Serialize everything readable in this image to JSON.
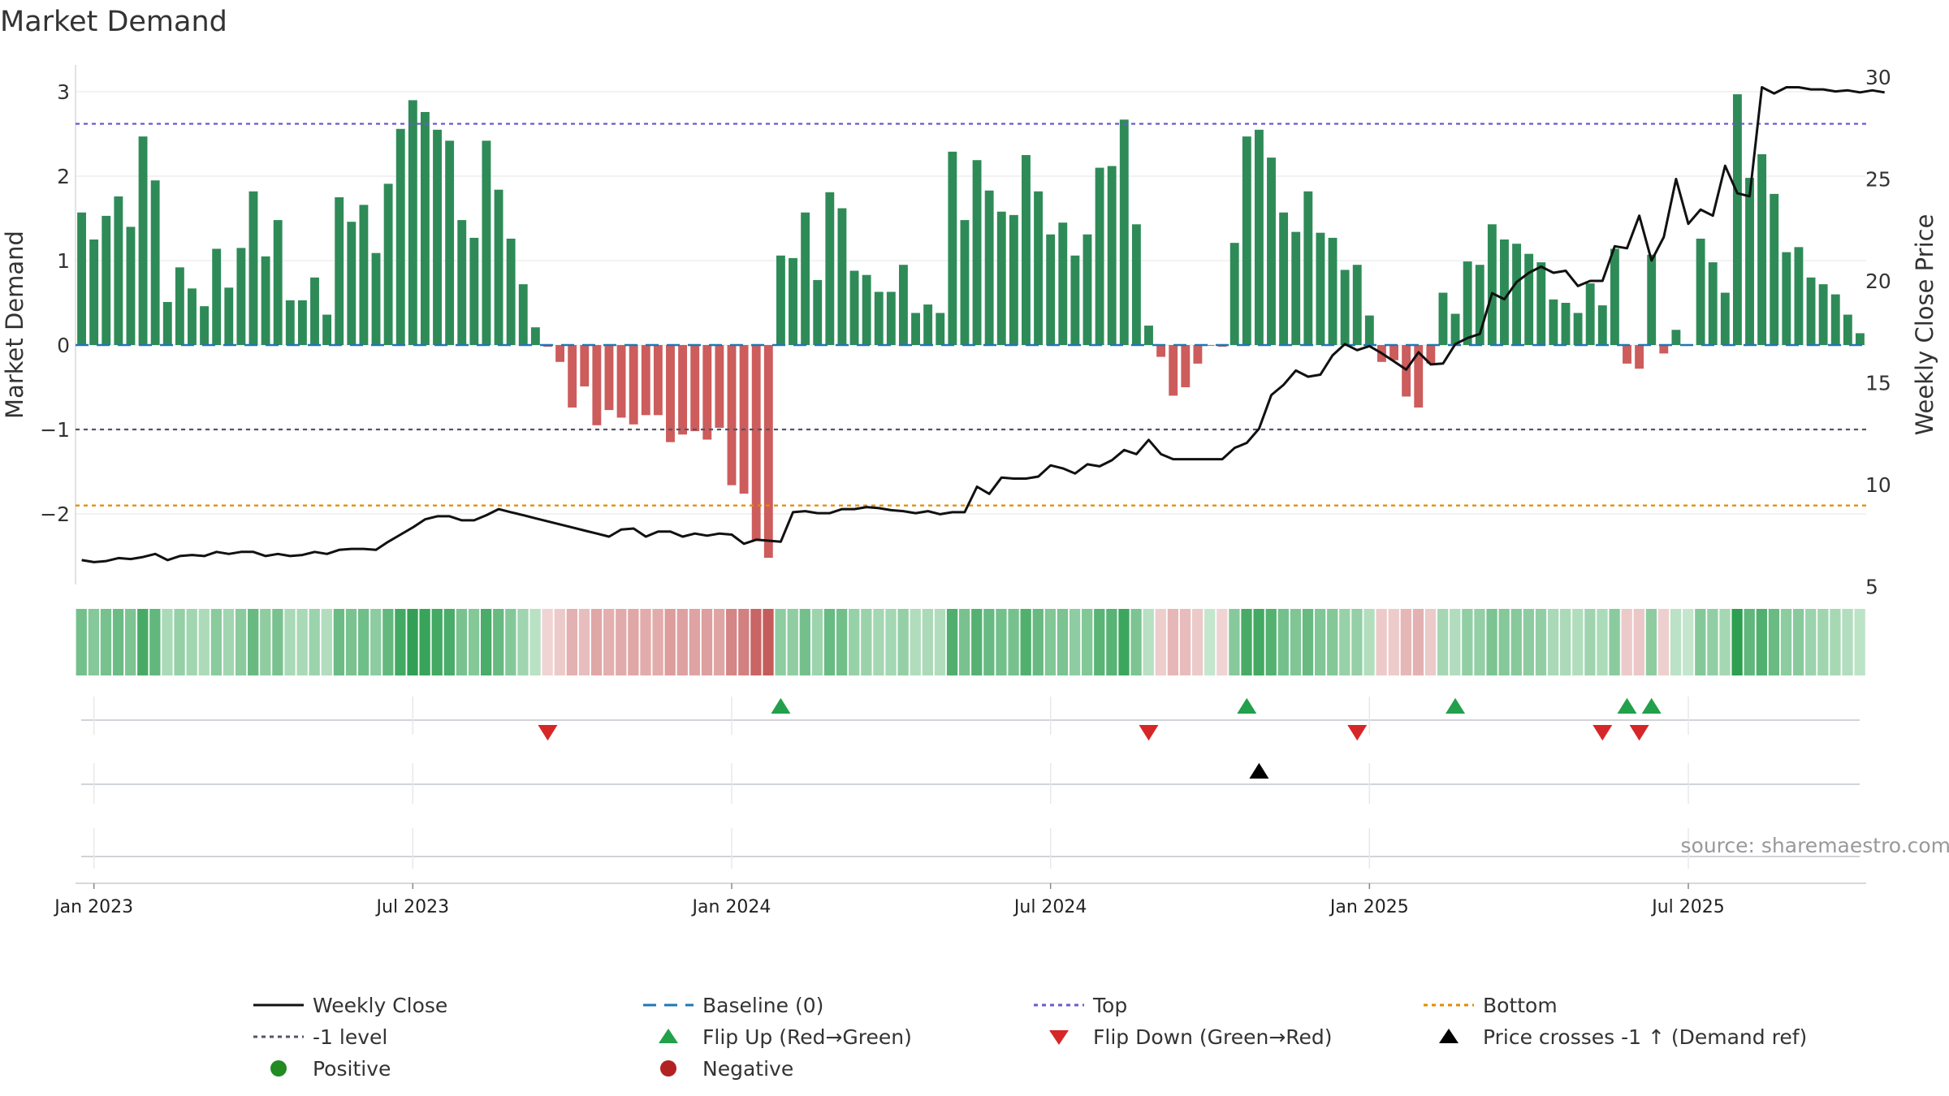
{
  "chart_data": {
    "type": "bar",
    "title": "Market Demand",
    "ylabel_left": "Market Demand",
    "ylabel_right": "Weekly Close Price",
    "ylim_left": [
      -2.8,
      3.3
    ],
    "ylim_right": [
      4,
      30.8
    ],
    "yticks_left": [
      3,
      2,
      1,
      0,
      -1,
      -2
    ],
    "yticks_left_labels": [
      "3",
      "2",
      "1",
      "0",
      "−1",
      "−2"
    ],
    "yticks_right": [
      30,
      25,
      20,
      15,
      10,
      5
    ],
    "yticks_right_labels": [
      "30",
      "25",
      "20",
      "15",
      "10",
      "5"
    ],
    "x_start": "2023-01-01",
    "x_end": "2025-09-14",
    "x_ticks": [
      "Jan 2023",
      "Jul 2023",
      "Jan 2024",
      "Jul 2024",
      "Jan 2025",
      "Jul 2025"
    ],
    "x_tick_weeks": [
      1.5,
      27.5,
      53.5,
      79.5,
      105.5,
      131.5
    ],
    "reference_lines": {
      "baseline": 0,
      "top": 2.62,
      "minus_one_level": -1,
      "bottom": -1.9
    },
    "demand": [
      1.57,
      1.25,
      1.53,
      1.76,
      1.4,
      2.47,
      1.95,
      0.51,
      0.92,
      0.67,
      0.46,
      1.14,
      0.68,
      1.15,
      1.82,
      1.05,
      1.48,
      0.53,
      0.53,
      0.8,
      0.36,
      1.75,
      1.46,
      1.66,
      1.09,
      1.91,
      2.56,
      2.9,
      2.76,
      2.55,
      2.42,
      1.48,
      1.27,
      2.42,
      1.84,
      1.26,
      0.72,
      0.21,
      -0.02,
      -0.2,
      -0.74,
      -0.49,
      -0.95,
      -0.77,
      -0.86,
      -0.94,
      -0.83,
      -0.83,
      -1.15,
      -1.06,
      -1.02,
      -1.12,
      -0.98,
      -1.66,
      -1.76,
      -2.32,
      -2.52,
      1.06,
      1.03,
      1.57,
      0.77,
      1.81,
      1.62,
      0.88,
      0.83,
      0.63,
      0.63,
      0.95,
      0.38,
      0.48,
      0.38,
      2.29,
      1.48,
      2.19,
      1.83,
      1.58,
      1.54,
      2.25,
      1.82,
      1.31,
      1.45,
      1.06,
      1.31,
      2.1,
      2.12,
      2.67,
      1.43,
      0.23,
      -0.14,
      -0.6,
      -0.5,
      -0.22,
      0.0,
      -0.02,
      1.21,
      2.47,
      2.55,
      2.22,
      1.57,
      1.34,
      1.82,
      1.33,
      1.27,
      0.89,
      0.95,
      0.35,
      -0.2,
      -0.18,
      -0.61,
      -0.74,
      -0.22,
      0.62,
      0.37,
      0.99,
      0.95,
      1.43,
      1.25,
      1.2,
      1.08,
      0.98,
      0.54,
      0.5,
      0.38,
      0.73,
      0.47,
      1.14,
      -0.22,
      -0.28,
      1.07,
      -0.1,
      0.18,
      0.0,
      1.26,
      0.98,
      0.62,
      2.97,
      1.98,
      2.26,
      1.79,
      1.1,
      1.16,
      0.8,
      0.72,
      0.6,
      0.36,
      0.14
    ],
    "weekly_close": [
      6.3,
      6.2,
      6.25,
      6.4,
      6.35,
      6.45,
      6.6,
      6.3,
      6.5,
      6.55,
      6.5,
      6.7,
      6.6,
      6.7,
      6.7,
      6.5,
      6.6,
      6.5,
      6.55,
      6.7,
      6.6,
      6.8,
      6.85,
      6.85,
      6.8,
      7.2,
      7.55,
      7.9,
      8.3,
      8.45,
      8.45,
      8.25,
      8.25,
      8.5,
      8.8,
      8.65,
      8.5,
      8.35,
      8.2,
      8.05,
      7.9,
      7.75,
      7.6,
      7.45,
      7.8,
      7.85,
      7.45,
      7.7,
      7.7,
      7.45,
      7.6,
      7.5,
      7.6,
      7.55,
      7.1,
      7.3,
      7.25,
      7.2,
      8.65,
      8.7,
      8.6,
      8.6,
      8.8,
      8.8,
      8.9,
      8.85,
      8.75,
      8.7,
      8.6,
      8.7,
      8.55,
      8.65,
      8.65,
      9.9,
      9.55,
      10.35,
      10.3,
      10.3,
      10.4,
      10.95,
      10.8,
      10.55,
      11.0,
      10.9,
      11.2,
      11.7,
      11.5,
      12.2,
      11.5,
      11.25,
      11.25,
      11.25,
      11.25,
      11.25,
      11.8,
      12.05,
      12.75,
      14.4,
      14.9,
      15.6,
      15.3,
      15.4,
      16.35,
      16.9,
      16.6,
      16.8,
      16.45,
      16.05,
      15.65,
      16.5,
      15.9,
      15.95,
      16.9,
      17.2,
      17.4,
      19.4,
      19.1,
      19.95,
      20.4,
      20.7,
      20.4,
      20.5,
      19.75,
      20.0,
      20.0,
      21.7,
      21.6,
      23.2,
      21.0,
      22.15,
      25.0,
      22.8,
      23.5,
      23.2,
      25.65,
      24.3,
      24.15,
      29.5,
      29.2,
      29.5,
      29.5,
      29.4,
      29.4,
      29.3,
      29.35,
      29.25,
      29.35,
      29.25
    ],
    "flip_up_weeks": [
      57,
      95,
      112,
      126,
      128
    ],
    "flip_down_weeks": [
      38,
      87,
      104,
      124,
      127
    ],
    "price_cross_weeks": [
      96
    ],
    "legend": [
      "Weekly Close",
      "Baseline (0)",
      "Top",
      "Bottom",
      "-1 level",
      "Flip Up (Red→Green)",
      "Flip Down (Green→Red)",
      "Price crosses -1 ↑ (Demand ref)",
      "Positive",
      "Negative"
    ],
    "source": "source: sharemaestro.com"
  },
  "colors": {
    "positive_bar": "#2e8b57",
    "negative_bar": "#cd5c5c",
    "price_line": "#111111",
    "baseline": "#1f77b4",
    "top_line": "#6a5acd",
    "minus_one_line": "#555566",
    "bottom_line": "#e08c00",
    "flip_up": "#22a04b",
    "flip_down": "#d62728",
    "price_cross": "#000000",
    "positive_dot": "#228b22",
    "negative_dot": "#b22222"
  }
}
